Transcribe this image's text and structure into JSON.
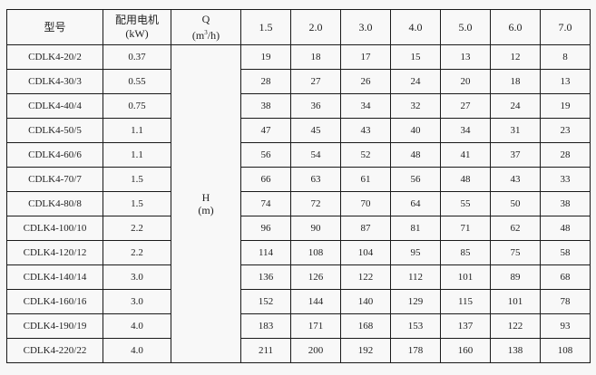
{
  "headers": {
    "model": "型号",
    "motor_line1": "配用电机",
    "motor_line2": "(kW)",
    "q_line1": "Q",
    "q_unit_prefix": "(m",
    "q_unit_sup": "3",
    "q_unit_suffix": "/h)",
    "flows": [
      "1.5",
      "2.0",
      "3.0",
      "4.0",
      "5.0",
      "6.0",
      "7.0"
    ]
  },
  "h_label_line1": "H",
  "h_label_line2": "(m)",
  "rows": [
    {
      "model": "CDLK4-20/2",
      "kw": "0.37",
      "h": [
        "19",
        "18",
        "17",
        "15",
        "13",
        "12",
        "8"
      ]
    },
    {
      "model": "CDLK4-30/3",
      "kw": "0.55",
      "h": [
        "28",
        "27",
        "26",
        "24",
        "20",
        "18",
        "13"
      ]
    },
    {
      "model": "CDLK4-40/4",
      "kw": "0.75",
      "h": [
        "38",
        "36",
        "34",
        "32",
        "27",
        "24",
        "19"
      ]
    },
    {
      "model": "CDLK4-50/5",
      "kw": "1.1",
      "h": [
        "47",
        "45",
        "43",
        "40",
        "34",
        "31",
        "23"
      ]
    },
    {
      "model": "CDLK4-60/6",
      "kw": "1.1",
      "h": [
        "56",
        "54",
        "52",
        "48",
        "41",
        "37",
        "28"
      ]
    },
    {
      "model": "CDLK4-70/7",
      "kw": "1.5",
      "h": [
        "66",
        "63",
        "61",
        "56",
        "48",
        "43",
        "33"
      ]
    },
    {
      "model": "CDLK4-80/8",
      "kw": "1.5",
      "h": [
        "74",
        "72",
        "70",
        "64",
        "55",
        "50",
        "38"
      ]
    },
    {
      "model": "CDLK4-100/10",
      "kw": "2.2",
      "h": [
        "96",
        "90",
        "87",
        "81",
        "71",
        "62",
        "48"
      ]
    },
    {
      "model": "CDLK4-120/12",
      "kw": "2.2",
      "h": [
        "114",
        "108",
        "104",
        "95",
        "85",
        "75",
        "58"
      ]
    },
    {
      "model": "CDLK4-140/14",
      "kw": "3.0",
      "h": [
        "136",
        "126",
        "122",
        "112",
        "101",
        "89",
        "68"
      ]
    },
    {
      "model": "CDLK4-160/16",
      "kw": "3.0",
      "h": [
        "152",
        "144",
        "140",
        "129",
        "115",
        "101",
        "78"
      ]
    },
    {
      "model": "CDLK4-190/19",
      "kw": "4.0",
      "h": [
        "183",
        "171",
        "168",
        "153",
        "137",
        "122",
        "93"
      ]
    },
    {
      "model": "CDLK4-220/22",
      "kw": "4.0",
      "h": [
        "211",
        "200",
        "192",
        "178",
        "160",
        "138",
        "108"
      ]
    }
  ]
}
